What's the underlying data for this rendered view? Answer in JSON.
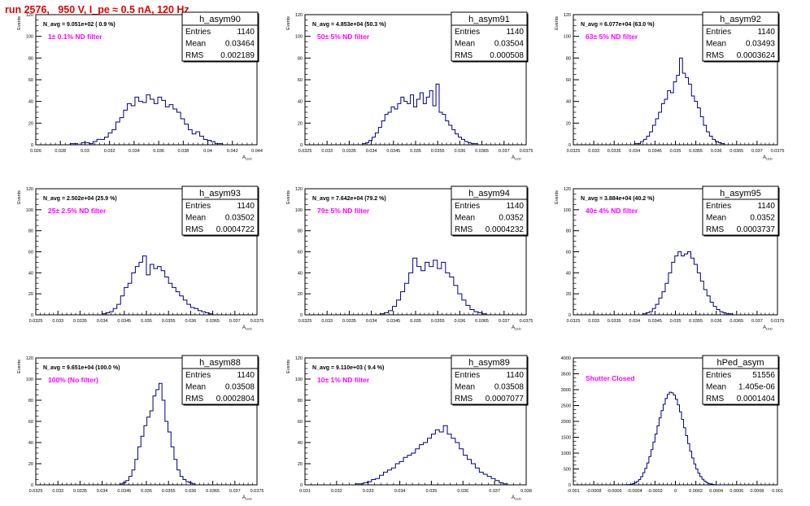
{
  "title": "run 2576,   950 V, I_pe ≈ 0.5 nA, 120 Hz",
  "colors": {
    "histogram": "#000080",
    "annotation": "#ff00ff",
    "title": "#e60000"
  },
  "stat_labels": {
    "entries": "Entries",
    "mean": "Mean",
    "rms": "RMS"
  },
  "chart_data": [
    {
      "type": "histogram",
      "name": "h_asym90",
      "nav_text": "N_avg = 9.051e+02 ( 0.9 %)",
      "filter_label": "1± 0.1% ND filter",
      "stats": {
        "entries": "1140",
        "mean": "0.03464",
        "rms": "0.002189"
      },
      "ylabel": "Events",
      "xlabel": "A_{LED}",
      "xlim": [
        0.026,
        0.044
      ],
      "ylim": [
        0,
        120
      ],
      "xticks": [
        0.026,
        0.028,
        0.03,
        0.032,
        0.034,
        0.036,
        0.038,
        0.04,
        0.042,
        0.044
      ],
      "xtick_labels": [
        "0.026",
        "0.028",
        "0.03",
        "0.032",
        "0.034",
        "0.036",
        "0.038",
        "0.04",
        "0.042",
        "0.044"
      ],
      "yticks": [
        0,
        20,
        40,
        60,
        80,
        100,
        120
      ],
      "bin_edges_range": [
        0.0288,
        0.0412
      ],
      "counts": [
        1,
        1,
        0,
        2,
        2,
        1,
        3,
        5,
        5,
        7,
        11,
        14,
        21,
        25,
        32,
        38,
        36,
        44,
        40,
        39,
        46,
        42,
        38,
        44,
        41,
        35,
        37,
        33,
        30,
        24,
        19,
        14,
        10,
        12,
        8,
        5,
        4,
        3,
        1,
        1
      ]
    },
    {
      "type": "histogram",
      "name": "h_asym91",
      "nav_text": "N_avg = 4.853e+04 (50.3 %)",
      "filter_label": "50± 5% ND filter",
      "stats": {
        "entries": "1140",
        "mean": "0.03504",
        "rms": "0.000508"
      },
      "ylabel": "Events",
      "xlabel": "A_{LED}",
      "xlim": [
        0.0325,
        0.0375
      ],
      "ylim": [
        0,
        120
      ],
      "xticks": [
        0.0325,
        0.033,
        0.0335,
        0.034,
        0.0345,
        0.035,
        0.0355,
        0.036,
        0.0365,
        0.037,
        0.0375
      ],
      "xtick_labels": [
        "0.0325",
        "0.033",
        "0.0335",
        "0.034",
        "0.0345",
        "0.035",
        "0.0355",
        "0.036",
        "0.0365",
        "0.037",
        "0.0375"
      ],
      "yticks": [
        0,
        20,
        40,
        60,
        80,
        100,
        120
      ],
      "bin_edges_range": [
        0.0338,
        0.0364
      ],
      "counts": [
        1,
        2,
        4,
        7,
        11,
        16,
        22,
        28,
        30,
        35,
        33,
        38,
        44,
        40,
        38,
        46,
        35,
        42,
        48,
        38,
        44,
        50,
        36,
        56,
        30,
        28,
        22,
        18,
        14,
        10,
        7,
        5,
        3,
        2,
        1,
        1
      ]
    },
    {
      "type": "histogram",
      "name": "h_asym92",
      "nav_text": "N_avg = 6.077e+04 (63.0 %)",
      "filter_label": "63± 5% ND filter",
      "stats": {
        "entries": "1140",
        "mean": "0.03493",
        "rms": "0.0003624"
      },
      "ylabel": "Events",
      "xlabel": "A_{LED}",
      "xlim": [
        0.0325,
        0.0375
      ],
      "ylim": [
        0,
        120
      ],
      "xticks": [
        0.0325,
        0.033,
        0.0335,
        0.034,
        0.0345,
        0.035,
        0.0355,
        0.036,
        0.0365,
        0.037,
        0.0375
      ],
      "xtick_labels": [
        "0.0325",
        "0.033",
        "0.0335",
        "0.034",
        "0.0345",
        "0.035",
        "0.0355",
        "0.036",
        "0.0365",
        "0.037",
        "0.0375"
      ],
      "yticks": [
        0,
        20,
        40,
        60,
        80,
        100,
        120
      ],
      "bin_edges_range": [
        0.034,
        0.0362
      ],
      "counts": [
        1,
        1,
        3,
        5,
        8,
        12,
        18,
        24,
        30,
        38,
        42,
        50,
        48,
        58,
        64,
        80,
        66,
        62,
        56,
        45,
        40,
        34,
        26,
        18,
        12,
        8,
        5,
        3,
        2,
        1
      ]
    },
    {
      "type": "histogram",
      "name": "h_asym93",
      "nav_text": "N_avg = 2.502e+04 (25.9 %)",
      "filter_label": "25± 2.5% ND filter",
      "stats": {
        "entries": "1140",
        "mean": "0.03502",
        "rms": "0.0004722"
      },
      "ylabel": "Events",
      "xlabel": "A_{LED}",
      "xlim": [
        0.0325,
        0.0375
      ],
      "ylim": [
        0,
        120
      ],
      "xticks": [
        0.0325,
        0.033,
        0.0335,
        0.034,
        0.0345,
        0.035,
        0.0355,
        0.036,
        0.0365,
        0.037,
        0.0375
      ],
      "xtick_labels": [
        "0.0325",
        "0.033",
        "0.0335",
        "0.034",
        "0.0345",
        "0.035",
        "0.0355",
        "0.036",
        "0.0365",
        "0.037",
        "0.0375"
      ],
      "yticks": [
        0,
        20,
        40,
        60,
        80,
        100,
        120
      ],
      "bin_edges_range": [
        0.034,
        0.0365
      ],
      "counts": [
        1,
        2,
        3,
        6,
        10,
        18,
        26,
        30,
        40,
        46,
        50,
        56,
        38,
        48,
        44,
        46,
        42,
        36,
        30,
        26,
        22,
        18,
        14,
        10,
        7,
        6,
        4,
        3,
        2,
        1
      ]
    },
    {
      "type": "histogram",
      "name": "h_asym94",
      "nav_text": "N_avg = 7.642e+04 (79.2 %)",
      "filter_label": "79± 5% ND filter",
      "stats": {
        "entries": "1140",
        "mean": "0.0352",
        "rms": "0.0004232"
      },
      "ylabel": "Events",
      "xlabel": "A_{LED}",
      "xlim": [
        0.0325,
        0.0375
      ],
      "ylim": [
        0,
        120
      ],
      "xticks": [
        0.0325,
        0.033,
        0.0335,
        0.034,
        0.0345,
        0.035,
        0.0355,
        0.036,
        0.0365,
        0.037,
        0.0375
      ],
      "xtick_labels": [
        "0.0325",
        "0.033",
        "0.0335",
        "0.034",
        "0.0345",
        "0.035",
        "0.0355",
        "0.036",
        "0.0365",
        "0.037",
        "0.0375"
      ],
      "yticks": [
        0,
        20,
        40,
        60,
        80,
        100,
        120
      ],
      "bin_edges_range": [
        0.0342,
        0.0366
      ],
      "counts": [
        1,
        2,
        4,
        8,
        14,
        22,
        30,
        40,
        54,
        46,
        42,
        50,
        46,
        52,
        44,
        50,
        40,
        36,
        28,
        20,
        14,
        9,
        5,
        3,
        2,
        1
      ]
    },
    {
      "type": "histogram",
      "name": "h_asym95",
      "nav_text": "N_avg = 3.884e+04 (40.2 %)",
      "filter_label": "40± 4% ND filter",
      "stats": {
        "entries": "1140",
        "mean": "0.0352",
        "rms": "0.0003737"
      },
      "ylabel": "Events",
      "xlabel": "A_{LED}",
      "xlim": [
        0.0325,
        0.0375
      ],
      "ylim": [
        0,
        120
      ],
      "xticks": [
        0.0325,
        0.033,
        0.0335,
        0.034,
        0.0345,
        0.035,
        0.0355,
        0.036,
        0.0365,
        0.037,
        0.0375
      ],
      "xtick_labels": [
        "0.0325",
        "0.033",
        "0.0335",
        "0.034",
        "0.0345",
        "0.035",
        "0.0355",
        "0.036",
        "0.0365",
        "0.037",
        "0.0375"
      ],
      "yticks": [
        0,
        20,
        40,
        60,
        80,
        100,
        120
      ],
      "bin_edges_range": [
        0.0342,
        0.0364
      ],
      "counts": [
        1,
        2,
        3,
        6,
        10,
        16,
        22,
        30,
        40,
        50,
        56,
        60,
        56,
        58,
        60,
        54,
        48,
        40,
        32,
        24,
        18,
        12,
        8,
        5,
        3,
        2,
        1,
        1
      ]
    },
    {
      "type": "histogram",
      "name": "h_asym88",
      "nav_text": "N_avg = 9.651e+04 (100.0 %)",
      "filter_label": "100% (No filter)",
      "stats": {
        "entries": "1140",
        "mean": "0.03508",
        "rms": "0.0002804"
      },
      "ylabel": "Events",
      "xlabel": "A_{LED}",
      "xlim": [
        0.0325,
        0.0375
      ],
      "ylim": [
        0,
        120
      ],
      "xticks": [
        0.0325,
        0.033,
        0.0335,
        0.034,
        0.0345,
        0.035,
        0.0355,
        0.036,
        0.0365,
        0.037,
        0.0375
      ],
      "xtick_labels": [
        "0.0325",
        "0.033",
        "0.0335",
        "0.034",
        "0.0345",
        "0.035",
        "0.0355",
        "0.036",
        "0.0365",
        "0.037",
        "0.0375"
      ],
      "yticks": [
        0,
        20,
        40,
        60,
        80,
        100,
        120
      ],
      "bin_edges_range": [
        0.0344,
        0.0361
      ],
      "counts": [
        1,
        2,
        4,
        8,
        14,
        24,
        36,
        46,
        56,
        64,
        70,
        84,
        90,
        96,
        80,
        60,
        50,
        36,
        24,
        14,
        8,
        5,
        3,
        2,
        1
      ]
    },
    {
      "type": "histogram",
      "name": "h_asym89",
      "nav_text": "N_avg = 9.110e+03 ( 9.4 %)",
      "filter_label": "10± 1% ND filter",
      "stats": {
        "entries": "1140",
        "mean": "0.03508",
        "rms": "0.0007077"
      },
      "ylabel": "Events",
      "xlabel": "A_{LED}",
      "xlim": [
        0.031,
        0.038
      ],
      "ylim": [
        0,
        120
      ],
      "xticks": [
        0.031,
        0.032,
        0.033,
        0.034,
        0.035,
        0.036,
        0.037,
        0.038
      ],
      "xtick_labels": [
        "0.031",
        "0.032",
        "0.033",
        "0.034",
        "0.035",
        "0.036",
        "0.037",
        "0.038"
      ],
      "yticks": [
        0,
        20,
        40,
        60,
        80,
        100,
        120
      ],
      "bin_edges_range": [
        0.0326,
        0.0374
      ],
      "counts": [
        1,
        1,
        2,
        3,
        5,
        6,
        9,
        12,
        14,
        16,
        20,
        22,
        26,
        28,
        30,
        34,
        38,
        40,
        44,
        48,
        52,
        50,
        56,
        48,
        44,
        40,
        34,
        28,
        24,
        20,
        16,
        12,
        10,
        8,
        6,
        4,
        2,
        1
      ]
    },
    {
      "type": "histogram",
      "name": "hPed_asym",
      "nav_text": "",
      "filter_label": "Shutter Closed",
      "stats": {
        "entries": "51556",
        "mean": "1.405e-06",
        "rms": "0.0001404"
      },
      "ylabel": "",
      "xlabel": "",
      "xlim": [
        -0.001,
        0.001
      ],
      "ylim": [
        0,
        4000
      ],
      "xticks": [
        -0.001,
        -0.0008,
        -0.0006,
        -0.0004,
        -0.0002,
        0,
        0.0002,
        0.0004,
        0.0006,
        0.0008,
        0.001
      ],
      "xtick_labels": [
        "-0.001",
        "-0.0008",
        "-0.0006",
        "-0.0004",
        "-0.0002",
        "0",
        "0.0002",
        "0.0004",
        "0.0006",
        "0.0008",
        "0.001"
      ],
      "yticks": [
        0,
        500,
        1000,
        1500,
        2000,
        2500,
        3000,
        3500,
        4000
      ],
      "bin_edges_range": [
        -0.0005,
        0.0005
      ],
      "counts": [
        2,
        5,
        10,
        20,
        38,
        65,
        110,
        170,
        260,
        380,
        520,
        690,
        890,
        1110,
        1350,
        1600,
        1860,
        2110,
        2340,
        2540,
        2720,
        2850,
        2920,
        2900,
        2830,
        2700,
        2520,
        2300,
        2060,
        1800,
        1550,
        1300,
        1060,
        850,
        660,
        500,
        370,
        260,
        175,
        115,
        72,
        42,
        24,
        12,
        6,
        3,
        1,
        1,
        0,
        0
      ]
    }
  ]
}
